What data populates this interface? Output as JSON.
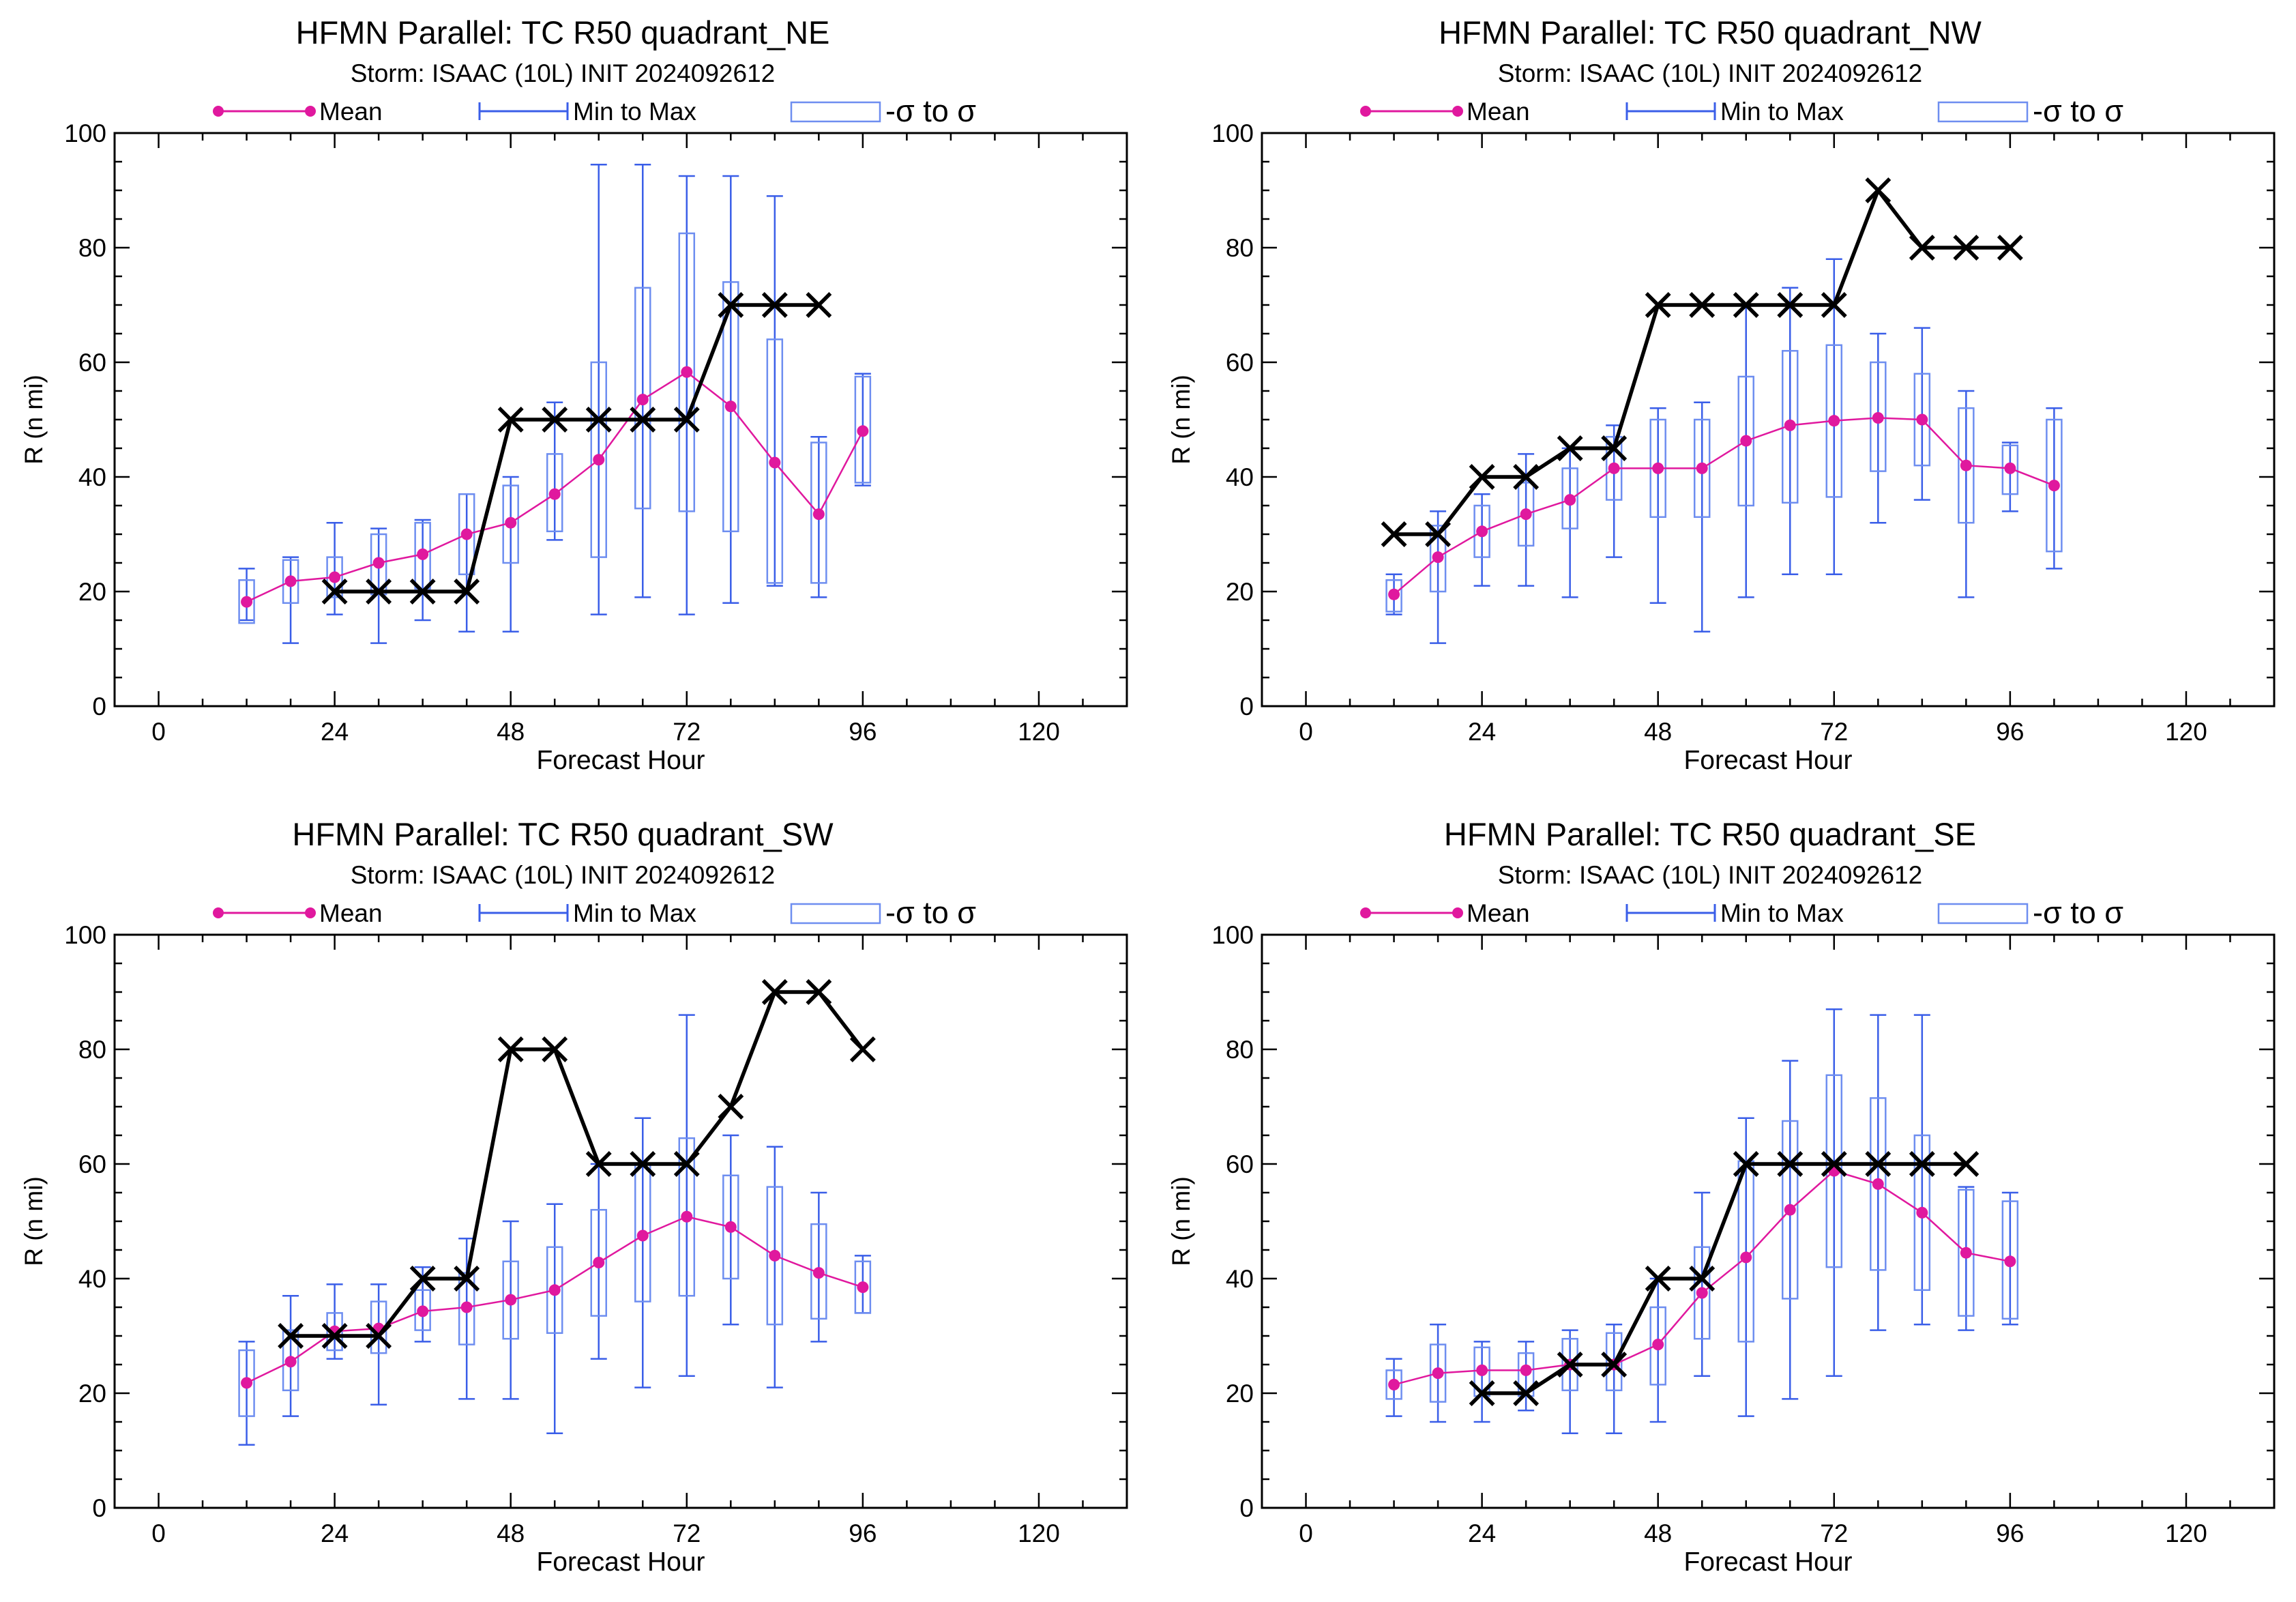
{
  "colors": {
    "mean": "#E0189E",
    "range": "#3A5EE8",
    "sigma": "#6E8EF0",
    "obs": "#000000",
    "axis": "#000000"
  },
  "legend": {
    "mean": "Mean",
    "range": "Min to Max",
    "sigma": "-σ to σ"
  },
  "chart_data": [
    {
      "type": "box",
      "title": "HFMN Parallel: TC  R50 quadrant_NE",
      "subtitle": "Storm: ISAAC (10L) INIT 2024092612",
      "xlabel": "Forecast Hour",
      "ylabel": "R (n mi)",
      "xlim": [
        -6,
        132
      ],
      "ylim": [
        0,
        100
      ],
      "xticks": [
        0,
        24,
        48,
        72,
        96,
        120
      ],
      "yticks": [
        0,
        20,
        40,
        60,
        80,
        100
      ],
      "boxes": [
        {
          "x": 12,
          "min": 15,
          "max": 24,
          "lo": 14.5,
          "hi": 22,
          "mean": 18.2
        },
        {
          "x": 18,
          "min": 11,
          "max": 26,
          "lo": 18,
          "hi": 25.5,
          "mean": 21.8
        },
        {
          "x": 24,
          "min": 16,
          "max": 32,
          "lo": 19,
          "hi": 26,
          "mean": 22.5
        },
        {
          "x": 30,
          "min": 11,
          "max": 31,
          "lo": 19.5,
          "hi": 30,
          "mean": 25
        },
        {
          "x": 36,
          "min": 15,
          "max": 32.5,
          "lo": 20.5,
          "hi": 32,
          "mean": 26.5
        },
        {
          "x": 42,
          "min": 13,
          "max": 37,
          "lo": 23,
          "hi": 37,
          "mean": 30
        },
        {
          "x": 48,
          "min": 13,
          "max": 40,
          "lo": 25,
          "hi": 38.5,
          "mean": 32
        },
        {
          "x": 54,
          "min": 29,
          "max": 53,
          "lo": 30.5,
          "hi": 44,
          "mean": 37
        },
        {
          "x": 60,
          "min": 16,
          "max": 94.5,
          "lo": 26,
          "hi": 60,
          "mean": 43
        },
        {
          "x": 66,
          "min": 19,
          "max": 94.5,
          "lo": 34.5,
          "hi": 73,
          "mean": 53.5
        },
        {
          "x": 72,
          "min": 16,
          "max": 92.5,
          "lo": 34,
          "hi": 82.5,
          "mean": 58.3
        },
        {
          "x": 78,
          "min": 18,
          "max": 92.5,
          "lo": 30.5,
          "hi": 74,
          "mean": 52.3
        },
        {
          "x": 84,
          "min": 21,
          "max": 89,
          "lo": 21.5,
          "hi": 64,
          "mean": 42.5
        },
        {
          "x": 90,
          "min": 19,
          "max": 47,
          "lo": 21.5,
          "hi": 46,
          "mean": 33.5
        },
        {
          "x": 96,
          "min": 38.5,
          "max": 58,
          "lo": 39,
          "hi": 57.5,
          "mean": 48
        }
      ],
      "observed": [
        [
          24,
          20
        ],
        [
          30,
          20
        ],
        [
          36,
          20
        ],
        [
          42,
          20
        ],
        [
          48,
          50
        ],
        [
          54,
          50
        ],
        [
          60,
          50
        ],
        [
          66,
          50
        ],
        [
          72,
          50
        ],
        [
          78,
          70
        ],
        [
          84,
          70
        ],
        [
          90,
          70
        ]
      ]
    },
    {
      "type": "box",
      "title": "HFMN Parallel: TC  R50 quadrant_NW",
      "subtitle": "Storm: ISAAC (10L) INIT 2024092612",
      "xlabel": "Forecast Hour",
      "ylabel": "R (n mi)",
      "xlim": [
        -6,
        132
      ],
      "ylim": [
        0,
        100
      ],
      "xticks": [
        0,
        24,
        48,
        72,
        96,
        120
      ],
      "yticks": [
        0,
        20,
        40,
        60,
        80,
        100
      ],
      "boxes": [
        {
          "x": 12,
          "min": 16,
          "max": 23,
          "lo": 16.5,
          "hi": 22,
          "mean": 19.5
        },
        {
          "x": 18,
          "min": 11,
          "max": 34,
          "lo": 20,
          "hi": 31.5,
          "mean": 26
        },
        {
          "x": 24,
          "min": 21,
          "max": 37,
          "lo": 26,
          "hi": 35,
          "mean": 30.5
        },
        {
          "x": 30,
          "min": 21,
          "max": 44,
          "lo": 28,
          "hi": 39,
          "mean": 33.5
        },
        {
          "x": 36,
          "min": 19,
          "max": 45,
          "lo": 31,
          "hi": 41.5,
          "mean": 36
        },
        {
          "x": 42,
          "min": 26,
          "max": 49,
          "lo": 36,
          "hi": 47,
          "mean": 41.5
        },
        {
          "x": 48,
          "min": 18,
          "max": 52,
          "lo": 33,
          "hi": 50,
          "mean": 41.5
        },
        {
          "x": 54,
          "min": 13,
          "max": 53,
          "lo": 33,
          "hi": 50,
          "mean": 41.5
        },
        {
          "x": 60,
          "min": 19,
          "max": 70,
          "lo": 35,
          "hi": 57.5,
          "mean": 46.3
        },
        {
          "x": 66,
          "min": 23,
          "max": 73,
          "lo": 35.5,
          "hi": 62,
          "mean": 49
        },
        {
          "x": 72,
          "min": 23,
          "max": 78,
          "lo": 36.5,
          "hi": 63,
          "mean": 49.8
        },
        {
          "x": 78,
          "min": 32,
          "max": 65,
          "lo": 41,
          "hi": 60,
          "mean": 50.3
        },
        {
          "x": 84,
          "min": 36,
          "max": 66,
          "lo": 42,
          "hi": 58,
          "mean": 50
        },
        {
          "x": 90,
          "min": 19,
          "max": 55,
          "lo": 32,
          "hi": 52,
          "mean": 42
        },
        {
          "x": 96,
          "min": 34,
          "max": 46,
          "lo": 37,
          "hi": 45.5,
          "mean": 41.5
        },
        {
          "x": 102,
          "min": 24,
          "max": 52,
          "lo": 27,
          "hi": 50,
          "mean": 38.5
        }
      ],
      "observed": [
        [
          12,
          30
        ],
        [
          18,
          30
        ],
        [
          24,
          40
        ],
        [
          30,
          40
        ],
        [
          36,
          45
        ],
        [
          42,
          45
        ],
        [
          48,
          70
        ],
        [
          54,
          70
        ],
        [
          60,
          70
        ],
        [
          66,
          70
        ],
        [
          72,
          70
        ],
        [
          78,
          90
        ],
        [
          84,
          80
        ],
        [
          90,
          80
        ],
        [
          96,
          80
        ]
      ]
    },
    {
      "type": "box",
      "title": "HFMN Parallel: TC  R50 quadrant_SW",
      "subtitle": "Storm: ISAAC (10L) INIT 2024092612",
      "xlabel": "Forecast Hour",
      "ylabel": "R (n mi)",
      "xlim": [
        -6,
        132
      ],
      "ylim": [
        0,
        100
      ],
      "xticks": [
        0,
        24,
        48,
        72,
        96,
        120
      ],
      "yticks": [
        0,
        20,
        40,
        60,
        80,
        100
      ],
      "boxes": [
        {
          "x": 12,
          "min": 11,
          "max": 29,
          "lo": 16,
          "hi": 27.5,
          "mean": 21.8
        },
        {
          "x": 18,
          "min": 16,
          "max": 37,
          "lo": 20.5,
          "hi": 31,
          "mean": 25.5
        },
        {
          "x": 24,
          "min": 26,
          "max": 39,
          "lo": 27.5,
          "hi": 34,
          "mean": 30.8
        },
        {
          "x": 30,
          "min": 18,
          "max": 39,
          "lo": 27,
          "hi": 36,
          "mean": 31.3
        },
        {
          "x": 36,
          "min": 29,
          "max": 42,
          "lo": 31,
          "hi": 38,
          "mean": 34.3
        },
        {
          "x": 42,
          "min": 19,
          "max": 47,
          "lo": 28.5,
          "hi": 41,
          "mean": 35
        },
        {
          "x": 48,
          "min": 19,
          "max": 50,
          "lo": 29.5,
          "hi": 43,
          "mean": 36.3
        },
        {
          "x": 54,
          "min": 13,
          "max": 53,
          "lo": 30.5,
          "hi": 45.5,
          "mean": 38
        },
        {
          "x": 60,
          "min": 26,
          "max": 60,
          "lo": 33.5,
          "hi": 52,
          "mean": 42.8
        },
        {
          "x": 66,
          "min": 21,
          "max": 68,
          "lo": 36,
          "hi": 60,
          "mean": 47.5
        },
        {
          "x": 72,
          "min": 23,
          "max": 86,
          "lo": 37,
          "hi": 64.5,
          "mean": 50.8
        },
        {
          "x": 78,
          "min": 32,
          "max": 65,
          "lo": 40,
          "hi": 58,
          "mean": 49
        },
        {
          "x": 84,
          "min": 21,
          "max": 63,
          "lo": 32,
          "hi": 56,
          "mean": 44
        },
        {
          "x": 90,
          "min": 29,
          "max": 55,
          "lo": 33,
          "hi": 49.5,
          "mean": 41
        },
        {
          "x": 96,
          "min": 34,
          "max": 44,
          "lo": 34,
          "hi": 43,
          "mean": 38.5
        }
      ],
      "observed": [
        [
          18,
          30
        ],
        [
          24,
          30
        ],
        [
          30,
          30
        ],
        [
          36,
          40
        ],
        [
          42,
          40
        ],
        [
          48,
          80
        ],
        [
          54,
          80
        ],
        [
          60,
          60
        ],
        [
          66,
          60
        ],
        [
          72,
          60
        ],
        [
          78,
          70
        ],
        [
          84,
          90
        ],
        [
          90,
          90
        ],
        [
          96,
          80
        ]
      ]
    },
    {
      "type": "box",
      "title": "HFMN Parallel: TC  R50 quadrant_SE",
      "subtitle": "Storm: ISAAC (10L) INIT 2024092612",
      "xlabel": "Forecast Hour",
      "ylabel": "R (n mi)",
      "xlim": [
        -6,
        132
      ],
      "ylim": [
        0,
        100
      ],
      "xticks": [
        0,
        24,
        48,
        72,
        96,
        120
      ],
      "yticks": [
        0,
        20,
        40,
        60,
        80,
        100
      ],
      "boxes": [
        {
          "x": 12,
          "min": 16,
          "max": 26,
          "lo": 19,
          "hi": 24,
          "mean": 21.5
        },
        {
          "x": 18,
          "min": 15,
          "max": 32,
          "lo": 18.5,
          "hi": 28.5,
          "mean": 23.5
        },
        {
          "x": 24,
          "min": 15,
          "max": 29,
          "lo": 19.5,
          "hi": 28,
          "mean": 24
        },
        {
          "x": 30,
          "min": 17,
          "max": 29,
          "lo": 19.5,
          "hi": 27,
          "mean": 24
        },
        {
          "x": 36,
          "min": 13,
          "max": 31,
          "lo": 20.5,
          "hi": 29.5,
          "mean": 25
        },
        {
          "x": 42,
          "min": 13,
          "max": 32,
          "lo": 20.5,
          "hi": 30.5,
          "mean": 25
        },
        {
          "x": 48,
          "min": 15,
          "max": 40,
          "lo": 21.5,
          "hi": 35,
          "mean": 28.5
        },
        {
          "x": 54,
          "min": 23,
          "max": 55,
          "lo": 29.5,
          "hi": 45.5,
          "mean": 37.5
        },
        {
          "x": 60,
          "min": 16,
          "max": 68,
          "lo": 29,
          "hi": 60.5,
          "mean": 43.7
        },
        {
          "x": 66,
          "min": 19,
          "max": 78,
          "lo": 36.5,
          "hi": 67.5,
          "mean": 52
        },
        {
          "x": 72,
          "min": 23,
          "max": 87,
          "lo": 42,
          "hi": 75.5,
          "mean": 58.8
        },
        {
          "x": 78,
          "min": 31,
          "max": 86,
          "lo": 41.5,
          "hi": 71.5,
          "mean": 56.5
        },
        {
          "x": 84,
          "min": 32,
          "max": 86,
          "lo": 38,
          "hi": 65,
          "mean": 51.5
        },
        {
          "x": 90,
          "min": 31,
          "max": 56,
          "lo": 33.5,
          "hi": 55.5,
          "mean": 44.5
        },
        {
          "x": 96,
          "min": 32,
          "max": 55,
          "lo": 33,
          "hi": 53.5,
          "mean": 43
        }
      ],
      "observed": [
        [
          24,
          20
        ],
        [
          30,
          20
        ],
        [
          36,
          25
        ],
        [
          42,
          25
        ],
        [
          48,
          40
        ],
        [
          54,
          40
        ],
        [
          60,
          60
        ],
        [
          66,
          60
        ],
        [
          72,
          60
        ],
        [
          78,
          60
        ],
        [
          84,
          60
        ],
        [
          90,
          60
        ]
      ]
    }
  ]
}
